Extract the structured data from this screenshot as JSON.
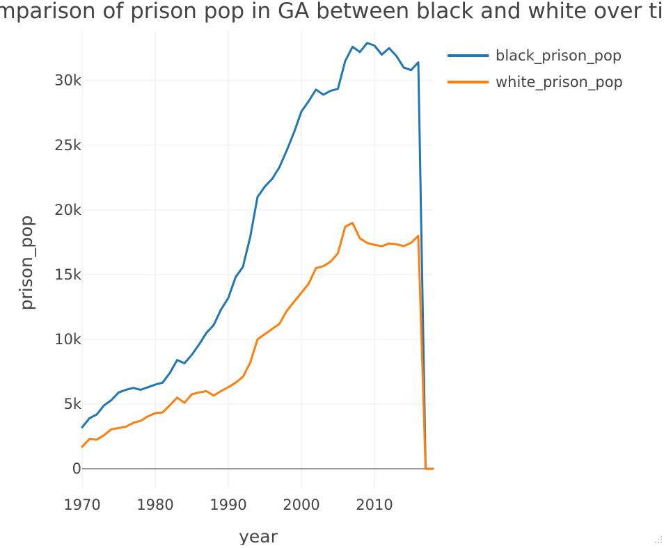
{
  "chart_data": {
    "type": "line",
    "title": "Comparison of prison pop in GA between black and white over time",
    "xlabel": "year",
    "ylabel": "prison_pop",
    "xlim": [
      1970,
      2018
    ],
    "ylim": [
      -1500,
      33800
    ],
    "x_ticks": [
      1970,
      1980,
      1990,
      2000,
      2010
    ],
    "x_tick_labels": [
      "1970",
      "1980",
      "1990",
      "2000",
      "2010"
    ],
    "y_ticks": [
      0,
      5000,
      10000,
      15000,
      20000,
      25000,
      30000
    ],
    "y_tick_labels": [
      "0",
      "5k",
      "10k",
      "15k",
      "20k",
      "25k",
      "30k"
    ],
    "grid": true,
    "legend_position": "top-right",
    "x": [
      1970,
      1971,
      1972,
      1973,
      1974,
      1975,
      1976,
      1977,
      1978,
      1979,
      1980,
      1981,
      1982,
      1983,
      1984,
      1985,
      1986,
      1987,
      1988,
      1989,
      1990,
      1991,
      1992,
      1993,
      1994,
      1995,
      1996,
      1997,
      1998,
      1999,
      2000,
      2001,
      2002,
      2003,
      2004,
      2005,
      2006,
      2007,
      2008,
      2009,
      2010,
      2011,
      2012,
      2013,
      2014,
      2015,
      2016,
      2017,
      2018
    ],
    "series": [
      {
        "name": "black_prison_pop",
        "color": "#1f77b4",
        "values": [
          3200,
          3900,
          4200,
          4900,
          5300,
          5900,
          6100,
          6250,
          6100,
          6300,
          6500,
          6650,
          7400,
          8400,
          8150,
          8800,
          9600,
          10500,
          11100,
          12300,
          13200,
          14800,
          15600,
          17900,
          21000,
          21800,
          22400,
          23300,
          24600,
          26000,
          27600,
          28400,
          29300,
          28900,
          29200,
          29350,
          31500,
          32600,
          32200,
          32900,
          32700,
          32000,
          32500,
          31900,
          31000,
          30800,
          31400,
          0,
          0
        ]
      },
      {
        "name": "white_prison_pop",
        "color": "#ff7f0e",
        "values": [
          1700,
          2300,
          2250,
          2600,
          3050,
          3150,
          3250,
          3550,
          3700,
          4050,
          4300,
          4350,
          4900,
          5500,
          5100,
          5750,
          5900,
          6000,
          5650,
          6000,
          6300,
          6650,
          7100,
          8200,
          10000,
          10400,
          10800,
          11200,
          12200,
          12900,
          13600,
          14300,
          15500,
          15650,
          16000,
          16650,
          18700,
          19000,
          17800,
          17450,
          17300,
          17200,
          17400,
          17350,
          17200,
          17450,
          18000,
          0,
          0
        ]
      }
    ]
  }
}
